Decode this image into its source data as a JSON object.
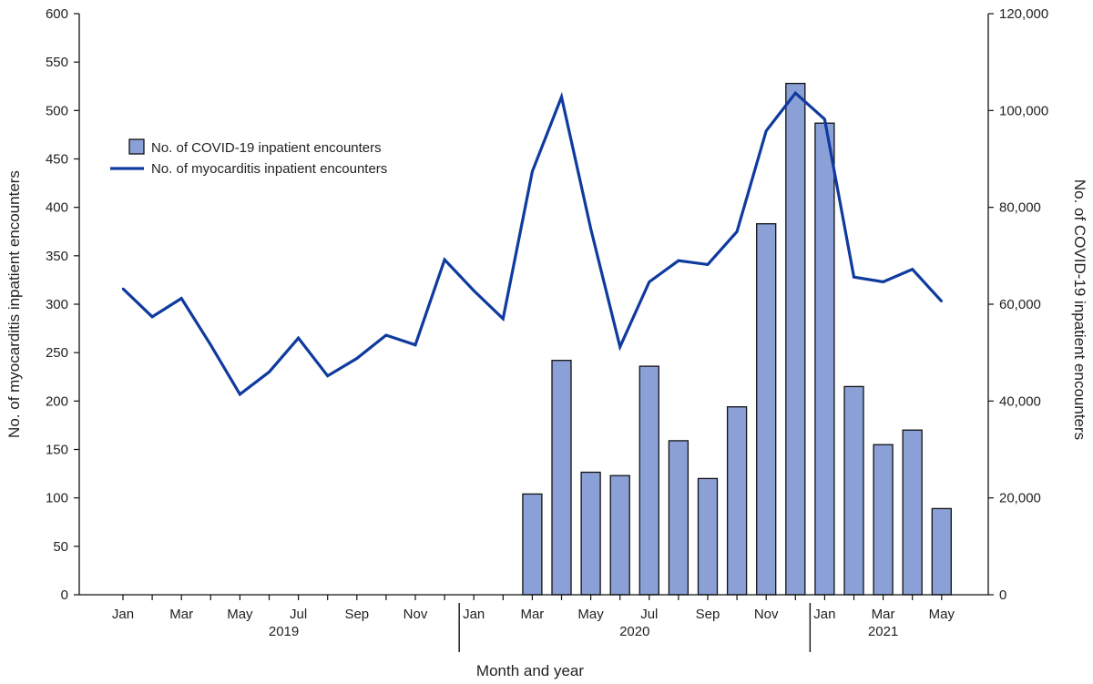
{
  "chart_data": {
    "type": "bar+line",
    "title": "",
    "xlabel": "Month and year",
    "ylabel_left": "No. of myocarditis inpatient encounters",
    "ylabel_right": "No. of COVID-19 inpatient encounters",
    "ylim_left": [
      0,
      600
    ],
    "ylim_right": [
      0,
      120000
    ],
    "yticks_left": [
      "0",
      "50",
      "100",
      "150",
      "200",
      "250",
      "300",
      "350",
      "400",
      "450",
      "500",
      "550",
      "600"
    ],
    "yticks_right": [
      "0",
      "20,000",
      "40,000",
      "60,000",
      "80,000",
      "100,000",
      "120,000"
    ],
    "grid": false,
    "legend_position": "upper-left",
    "months": [
      "2019-01",
      "2019-02",
      "2019-03",
      "2019-04",
      "2019-05",
      "2019-06",
      "2019-07",
      "2019-08",
      "2019-09",
      "2019-10",
      "2019-11",
      "2019-12",
      "2020-01",
      "2020-02",
      "2020-03",
      "2020-04",
      "2020-05",
      "2020-06",
      "2020-07",
      "2020-08",
      "2020-09",
      "2020-10",
      "2020-11",
      "2020-12",
      "2021-01",
      "2021-02",
      "2021-03",
      "2021-04",
      "2021-05"
    ],
    "tick_labels": [
      {
        "index": 0,
        "label": "Jan"
      },
      {
        "index": 2,
        "label": "Mar"
      },
      {
        "index": 4,
        "label": "May"
      },
      {
        "index": 6,
        "label": "Jul"
      },
      {
        "index": 8,
        "label": "Sep"
      },
      {
        "index": 10,
        "label": "Nov"
      },
      {
        "index": 12,
        "label": "Jan"
      },
      {
        "index": 14,
        "label": "Mar"
      },
      {
        "index": 16,
        "label": "May"
      },
      {
        "index": 18,
        "label": "Jul"
      },
      {
        "index": 20,
        "label": "Sep"
      },
      {
        "index": 22,
        "label": "Nov"
      },
      {
        "index": 24,
        "label": "Jan"
      },
      {
        "index": 26,
        "label": "Mar"
      },
      {
        "index": 28,
        "label": "May"
      }
    ],
    "year_groups": [
      {
        "label": "2019",
        "start": 0,
        "end": 11
      },
      {
        "label": "2020",
        "start": 12,
        "end": 23
      },
      {
        "label": "2021",
        "start": 24,
        "end": 28
      }
    ],
    "series": [
      {
        "name": "No. of COVID-19 inpatient encounters",
        "type": "bar",
        "axis": "right",
        "color": "#8aa0d6",
        "values": [
          0,
          0,
          0,
          0,
          0,
          0,
          0,
          0,
          0,
          0,
          0,
          0,
          0,
          0,
          20800,
          48400,
          25300,
          24600,
          47200,
          31800,
          24000,
          38800,
          76600,
          105600,
          97400,
          43000,
          31000,
          34000,
          17800
        ]
      },
      {
        "name": "No. of myocarditis inpatient encounters",
        "type": "line",
        "axis": "left",
        "color": "#0f3a9e",
        "values": [
          316,
          287,
          306,
          258,
          207,
          230,
          265,
          226,
          244,
          268,
          258,
          346,
          314,
          285,
          437,
          514,
          378,
          256,
          323,
          345,
          341,
          375,
          479,
          518,
          491,
          328,
          323,
          336,
          303
        ]
      }
    ]
  }
}
